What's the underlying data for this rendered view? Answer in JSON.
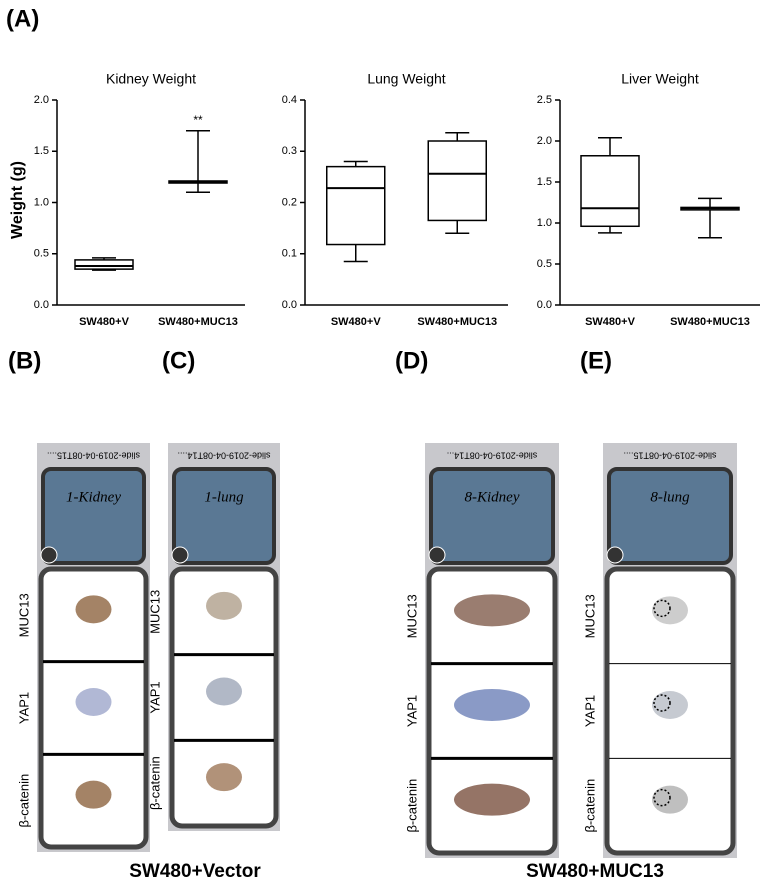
{
  "figure_label": "(A)",
  "chart_data": [
    {
      "type": "box",
      "title": "Kidney Weight",
      "y_label": "Weight (g)",
      "color": "#000000",
      "categories": [
        "SW480+V",
        "SW480+MUC13"
      ],
      "boxes": [
        {
          "min": 0.34,
          "q1": 0.35,
          "median": 0.38,
          "q3": 0.44,
          "max": 0.46
        },
        {
          "min": 1.1,
          "q1": 1.19,
          "median": 1.2,
          "q3": 1.21,
          "max": 1.7
        }
      ],
      "annotations": [
        {
          "text": "**",
          "category": "SW480+MUC13"
        }
      ],
      "ylim": [
        0,
        2
      ],
      "yticks": [
        {
          "value": 0,
          "label": "0.0"
        },
        0.5,
        {
          "value": 1,
          "label": "1.0"
        },
        1.5,
        {
          "value": 2,
          "label": "2.0"
        }
      ]
    },
    {
      "type": "box",
      "title": "Lung Weight",
      "color": "#000000",
      "categories": [
        "SW480+V",
        "SW480+MUC13"
      ],
      "boxes": [
        {
          "min": 0.085,
          "q1": 0.118,
          "median": 0.228,
          "q3": 0.27,
          "max": 0.28
        },
        {
          "min": 0.14,
          "q1": 0.165,
          "median": 0.256,
          "q3": 0.32,
          "max": 0.336
        }
      ],
      "ylim": [
        0,
        0.4
      ],
      "yticks": [
        {
          "value": 0,
          "label": "0.0"
        },
        0.1,
        0.2,
        0.3,
        0.4
      ]
    },
    {
      "type": "box",
      "title": "Liver Weight",
      "color": "#000000",
      "categories": [
        "SW480+V",
        "SW480+MUC13"
      ],
      "boxes": [
        {
          "min": 0.88,
          "q1": 0.96,
          "median": 1.18,
          "q3": 1.82,
          "max": 2.04
        },
        {
          "min": 0.82,
          "q1": 1.16,
          "median": 1.18,
          "q3": 1.19,
          "max": 1.3
        }
      ],
      "ylim": [
        0,
        2.5
      ],
      "yticks": [
        {
          "value": 0,
          "label": "0.0"
        },
        0.5,
        {
          "value": 1,
          "label": "1.0"
        },
        1.5,
        {
          "value": 2,
          "label": "2.0"
        },
        2.5
      ]
    }
  ],
  "panels": [
    {
      "label": "(B)",
      "slide_id": "slide-2019-04-08T15....",
      "handwriting": "1-Kidney",
      "rows": [
        "MUC13",
        "YAP1",
        "β-catenin"
      ]
    },
    {
      "label": "(C)",
      "slide_id": "slide-2019-04-08T14....",
      "handwriting": "1-lung",
      "rows": [
        "MUC13",
        "YAP1",
        "β-catenin"
      ]
    },
    {
      "label": "(D)",
      "slide_id": "slide-2019-04-08T14...",
      "handwriting": "8-Kidney",
      "rows": [
        "MUC13",
        "YAP1",
        "β-catenin"
      ]
    },
    {
      "label": "(E)",
      "slide_id": "slide-2019-04-08T15....",
      "handwriting": "8-lung",
      "rows": [
        "MUC13",
        "YAP1",
        "β-catenin"
      ]
    }
  ],
  "groups": [
    "SW480+Vector",
    "SW480+MUC13"
  ]
}
